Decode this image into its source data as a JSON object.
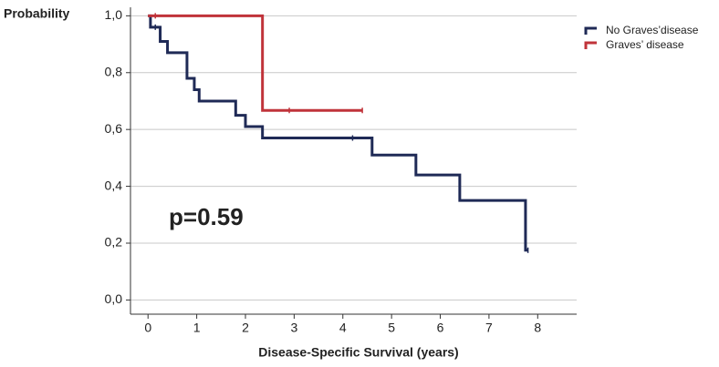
{
  "chart_data": {
    "type": "step",
    "y_label": "Probability",
    "x_label": "Disease-Specific Survival (years)",
    "annotation": "p=0.59",
    "xlim": [
      -0.36,
      8.8
    ],
    "ylim": [
      -0.05,
      1.03
    ],
    "xticks": [
      0,
      1,
      2,
      3,
      4,
      5,
      6,
      7,
      8
    ],
    "yticks": [
      {
        "value": 0,
        "label": "0,0"
      },
      {
        "value": 0.2,
        "label": "0,2"
      },
      {
        "value": 0.4,
        "label": "0,4"
      },
      {
        "value": 0.6,
        "label": "0,6"
      },
      {
        "value": 0.8,
        "label": "0,8"
      },
      {
        "value": 1,
        "label": "1,0"
      }
    ],
    "grid": true,
    "legend": "top-right",
    "series": [
      {
        "name": "No Graves’disease",
        "color": "#1f2a56",
        "x": [
          0,
          0.05,
          0.25,
          0.4,
          0.8,
          0.95,
          1.05,
          1.8,
          2.0,
          2.35,
          4.6,
          5.5,
          6.4,
          7.75,
          7.8
        ],
        "values": [
          1.0,
          0.96,
          0.91,
          0.87,
          0.78,
          0.74,
          0.7,
          0.65,
          0.61,
          0.57,
          0.51,
          0.44,
          0.35,
          0.175,
          0.175
        ],
        "censored_x": [
          0.15,
          4.2,
          7.8
        ]
      },
      {
        "name": "Graves’ disease",
        "color": "#c0333a",
        "x": [
          0,
          2.35,
          4.4
        ],
        "values": [
          1.0,
          0.667,
          0.667
        ],
        "censored_x": [
          0.15,
          2.9,
          4.4
        ]
      }
    ]
  }
}
